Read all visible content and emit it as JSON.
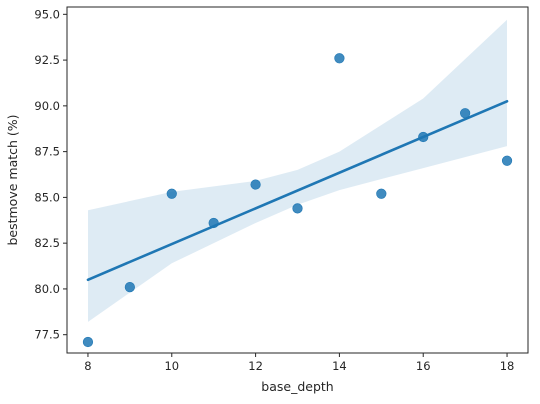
{
  "chart_data": {
    "type": "scatter",
    "title": "",
    "xlabel": "base_depth",
    "ylabel": "bestmove match (%)",
    "xlim": [
      7.5,
      18.5
    ],
    "ylim": [
      76.5,
      95.4
    ],
    "xticks": [
      8,
      10,
      12,
      14,
      16,
      18
    ],
    "yticks": [
      77.5,
      80.0,
      82.5,
      85.0,
      87.5,
      90.0,
      92.5,
      95.0
    ],
    "grid": false,
    "legend": "none",
    "points": {
      "x": [
        8,
        9,
        10,
        11,
        12,
        13,
        14,
        15,
        16,
        17,
        18
      ],
      "y": [
        77.1,
        80.1,
        85.2,
        83.6,
        85.7,
        84.4,
        92.6,
        85.2,
        88.3,
        89.6,
        87.0
      ]
    },
    "regression_line": {
      "x": [
        8,
        18
      ],
      "y": [
        80.5,
        90.25
      ]
    },
    "confidence_band": {
      "x": [
        8,
        10,
        12,
        13,
        14,
        16,
        18
      ],
      "lower": [
        78.2,
        81.4,
        83.6,
        84.6,
        85.4,
        86.6,
        87.8
      ],
      "upper": [
        84.3,
        85.3,
        85.9,
        86.5,
        87.5,
        90.4,
        94.7
      ]
    },
    "colors": {
      "points": "#1f77b4",
      "line": "#1f77b4",
      "band": "#1f77b4",
      "axis": "#262626",
      "background": "#ffffff"
    }
  }
}
